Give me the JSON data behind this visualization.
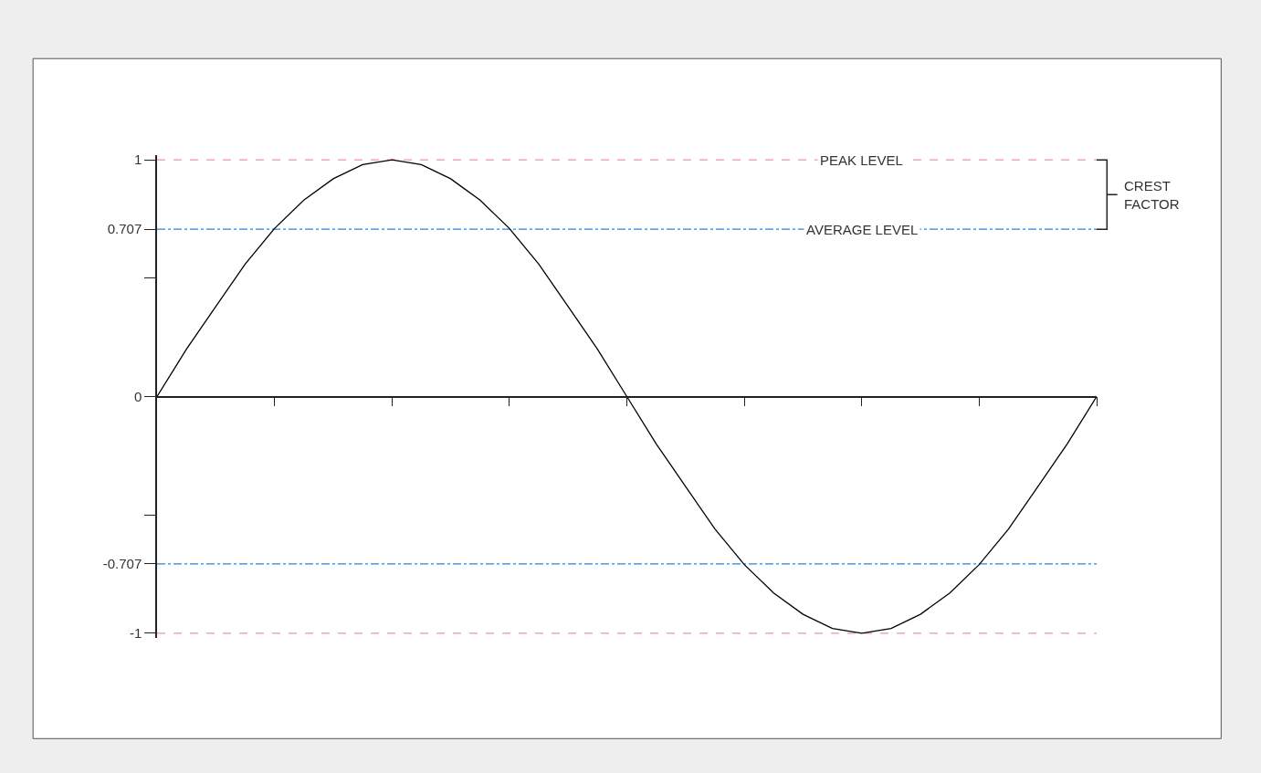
{
  "chart_data": {
    "type": "line",
    "categories": [
      null,
      null,
      null,
      null,
      null,
      null,
      null,
      null,
      null,
      null,
      null,
      null,
      null,
      null,
      null,
      null,
      null,
      null,
      null,
      null,
      null,
      null,
      null,
      null,
      null,
      null,
      null,
      null,
      null,
      null,
      null,
      null,
      null
    ],
    "series": [
      {
        "color": "#000000",
        "values": [
          0,
          0.2,
          0.38,
          0.56,
          0.71,
          0.83,
          0.92,
          0.98,
          1,
          0.98,
          0.92,
          0.83,
          0.71,
          0.56,
          0.38,
          0.2,
          0,
          -0.2,
          -0.38,
          -0.56,
          -0.71,
          -0.83,
          -0.92,
          -0.98,
          -1,
          -0.98,
          -0.92,
          -0.83,
          -0.71,
          -0.56,
          -0.38,
          -0.2,
          0
        ]
      }
    ],
    "ylim": [
      -1.02,
      1.02
    ],
    "yticks": [
      -1,
      -0.707,
      {
        "value": -0.5,
        "label": null
      },
      0,
      {
        "value": 0.5,
        "label": null
      },
      0.707,
      1
    ],
    "tick_labels": "y",
    "grid": false,
    "marker": "none",
    "line_style": "solid",
    "ref_lines": [
      {
        "axis": "y",
        "value": 1,
        "label": "PEAK LEVEL",
        "color": "#f48fb1",
        "line_style": "dashed"
      },
      {
        "axis": "y",
        "value": 0.707,
        "label": "AVERAGE LEVEL",
        "color": "#1e88e5",
        "line_style": "dashdot"
      },
      {
        "axis": "y",
        "value": -0.707,
        "color": "#1e88e5",
        "line_style": "dashdot"
      },
      {
        "axis": "y",
        "value": -1,
        "color": "#f48fb1",
        "line_style": "dashed"
      }
    ],
    "annotations": [
      "CREST FACTOR"
    ]
  }
}
